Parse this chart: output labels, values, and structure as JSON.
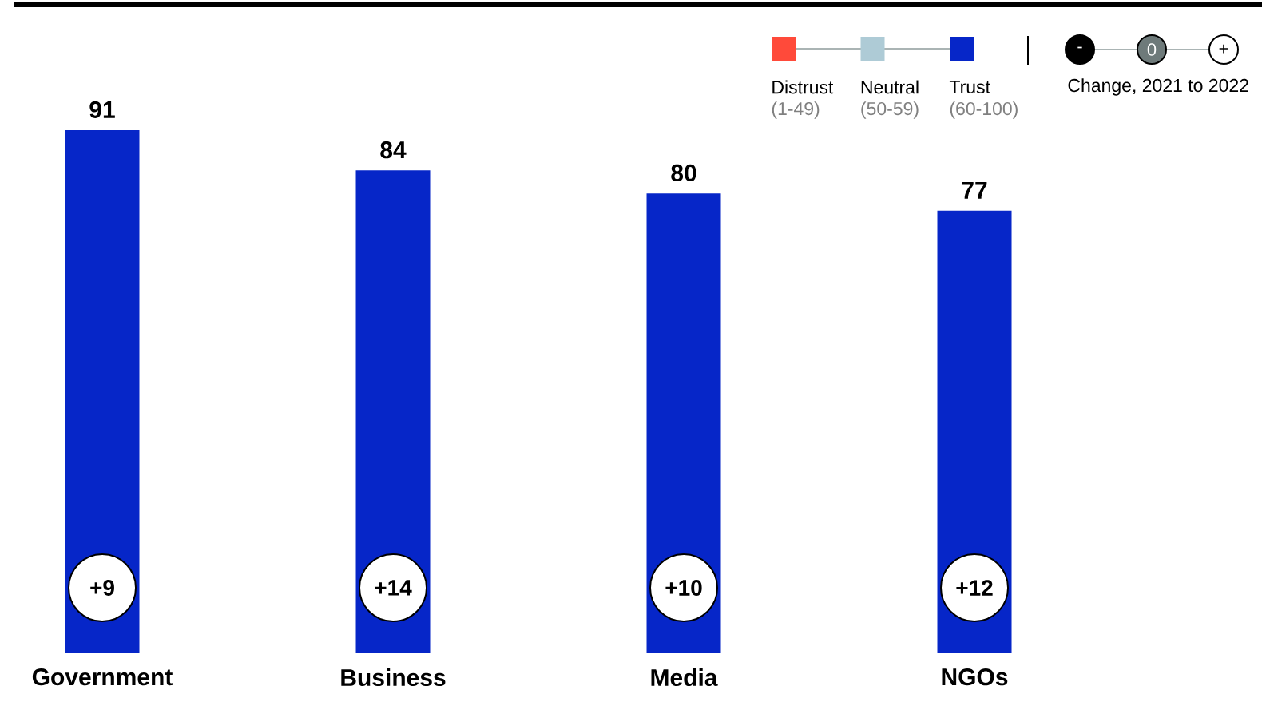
{
  "chart_data": {
    "type": "bar",
    "categories": [
      "Government",
      "Business",
      "Media",
      "NGOs"
    ],
    "series": [
      {
        "name": "Distrust",
        "color": "#ff4a3a",
        "values": [
          null,
          null,
          null,
          null
        ]
      },
      {
        "name": "Neutral",
        "color": "#aecbd6",
        "values": [
          null,
          null,
          null,
          null
        ]
      },
      {
        "name": "Trust",
        "color": "#0626c8",
        "values": [
          91,
          84,
          80,
          77
        ]
      }
    ],
    "data_labels": true,
    "tick_labels": "x",
    "legend": "top right",
    "annotations": [
      "(1-49)",
      "(50-59)",
      "(60-100)",
      "-",
      "0",
      "+",
      "Change, 2021 to 2022",
      "+9",
      "+14",
      "+10",
      "+12"
    ]
  }
}
